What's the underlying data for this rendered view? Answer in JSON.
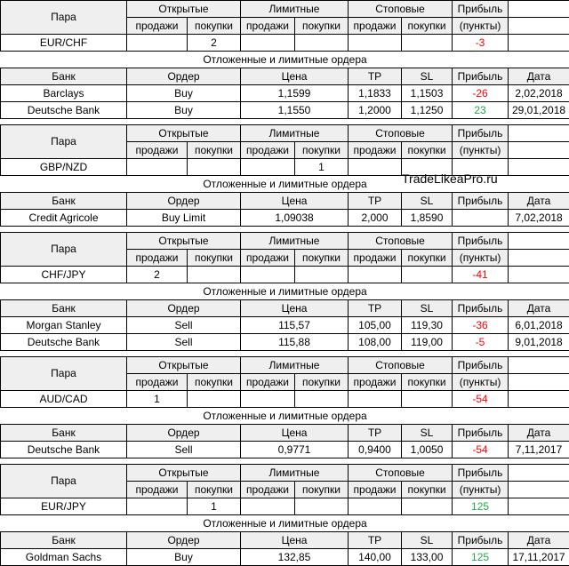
{
  "labels": {
    "pair": "Пара",
    "open": "Открытые",
    "limit": "Лимитные",
    "stop": "Стоповые",
    "profit": "Прибыль",
    "sells": "продажи",
    "buys": "покупки",
    "points": "(пункты)",
    "pending": "Отложенные и лимитные ордера",
    "bank": "Банк",
    "order": "Ордер",
    "price": "Цена",
    "tp": "TP",
    "sl": "SL",
    "date": "Дата"
  },
  "watermark": "TradeLikeaPro.ru",
  "colors": {
    "negative": "#ff0000",
    "positive": "#22a94a"
  },
  "blocks": [
    {
      "pair": "EUR/CHF",
      "open_sell": "",
      "open_buy": "2",
      "limit_sell": "",
      "limit_buy": "",
      "stop_sell": "",
      "stop_buy": "",
      "profit": "-3",
      "profit_sign": "neg",
      "orders": [
        {
          "bank": "Barclays",
          "order": "Buy",
          "price": "1,1599",
          "tp": "1,1833",
          "sl": "1,1503",
          "profit": "-26",
          "sign": "neg",
          "date": "2,02,2018"
        },
        {
          "bank": "Deutsche Bank",
          "order": "Buy",
          "price": "1,1550",
          "tp": "1,2000",
          "sl": "1,1250",
          "profit": "23",
          "sign": "pos",
          "date": "29,01,2018"
        }
      ]
    },
    {
      "pair": "GBP/NZD",
      "open_sell": "",
      "open_buy": "",
      "limit_sell": "",
      "limit_buy": "1",
      "stop_sell": "",
      "stop_buy": "",
      "profit": "",
      "profit_sign": "",
      "orders": [
        {
          "bank": "Credit Agricole",
          "order": "Buy Limit",
          "price": "1,09038",
          "tp": "2,000",
          "sl": "1,8590",
          "profit": "",
          "sign": "",
          "date": "7,02,2018"
        }
      ]
    },
    {
      "pair": "CHF/JPY",
      "open_sell": "2",
      "open_buy": "",
      "limit_sell": "",
      "limit_buy": "",
      "stop_sell": "",
      "stop_buy": "",
      "profit": "-41",
      "profit_sign": "neg",
      "orders": [
        {
          "bank": "Morgan Stanley",
          "order": "Sell",
          "price": "115,57",
          "tp": "105,00",
          "sl": "119,30",
          "profit": "-36",
          "sign": "neg",
          "date": "6,01,2018"
        },
        {
          "bank": "Deutsche Bank",
          "order": "Sell",
          "price": "115,88",
          "tp": "108,00",
          "sl": "119,00",
          "profit": "-5",
          "sign": "neg",
          "date": "9,01,2018"
        }
      ]
    },
    {
      "pair": "AUD/CAD",
      "open_sell": "1",
      "open_buy": "",
      "limit_sell": "",
      "limit_buy": "",
      "stop_sell": "",
      "stop_buy": "",
      "profit": "-54",
      "profit_sign": "neg",
      "orders": [
        {
          "bank": "Deutsche Bank",
          "order": "Sell",
          "price": "0,9771",
          "tp": "0,9400",
          "sl": "1,0050",
          "profit": "-54",
          "sign": "neg",
          "date": "7,11,2017"
        }
      ]
    },
    {
      "pair": "EUR/JPY",
      "open_sell": "",
      "open_buy": "1",
      "limit_sell": "",
      "limit_buy": "",
      "stop_sell": "",
      "stop_buy": "",
      "profit": "125",
      "profit_sign": "pos",
      "orders": [
        {
          "bank": "Goldman Sachs",
          "order": "Buy",
          "price": "132,85",
          "tp": "140,00",
          "sl": "133,00",
          "profit": "125",
          "sign": "pos",
          "date": "17,11,2017"
        }
      ]
    }
  ]
}
